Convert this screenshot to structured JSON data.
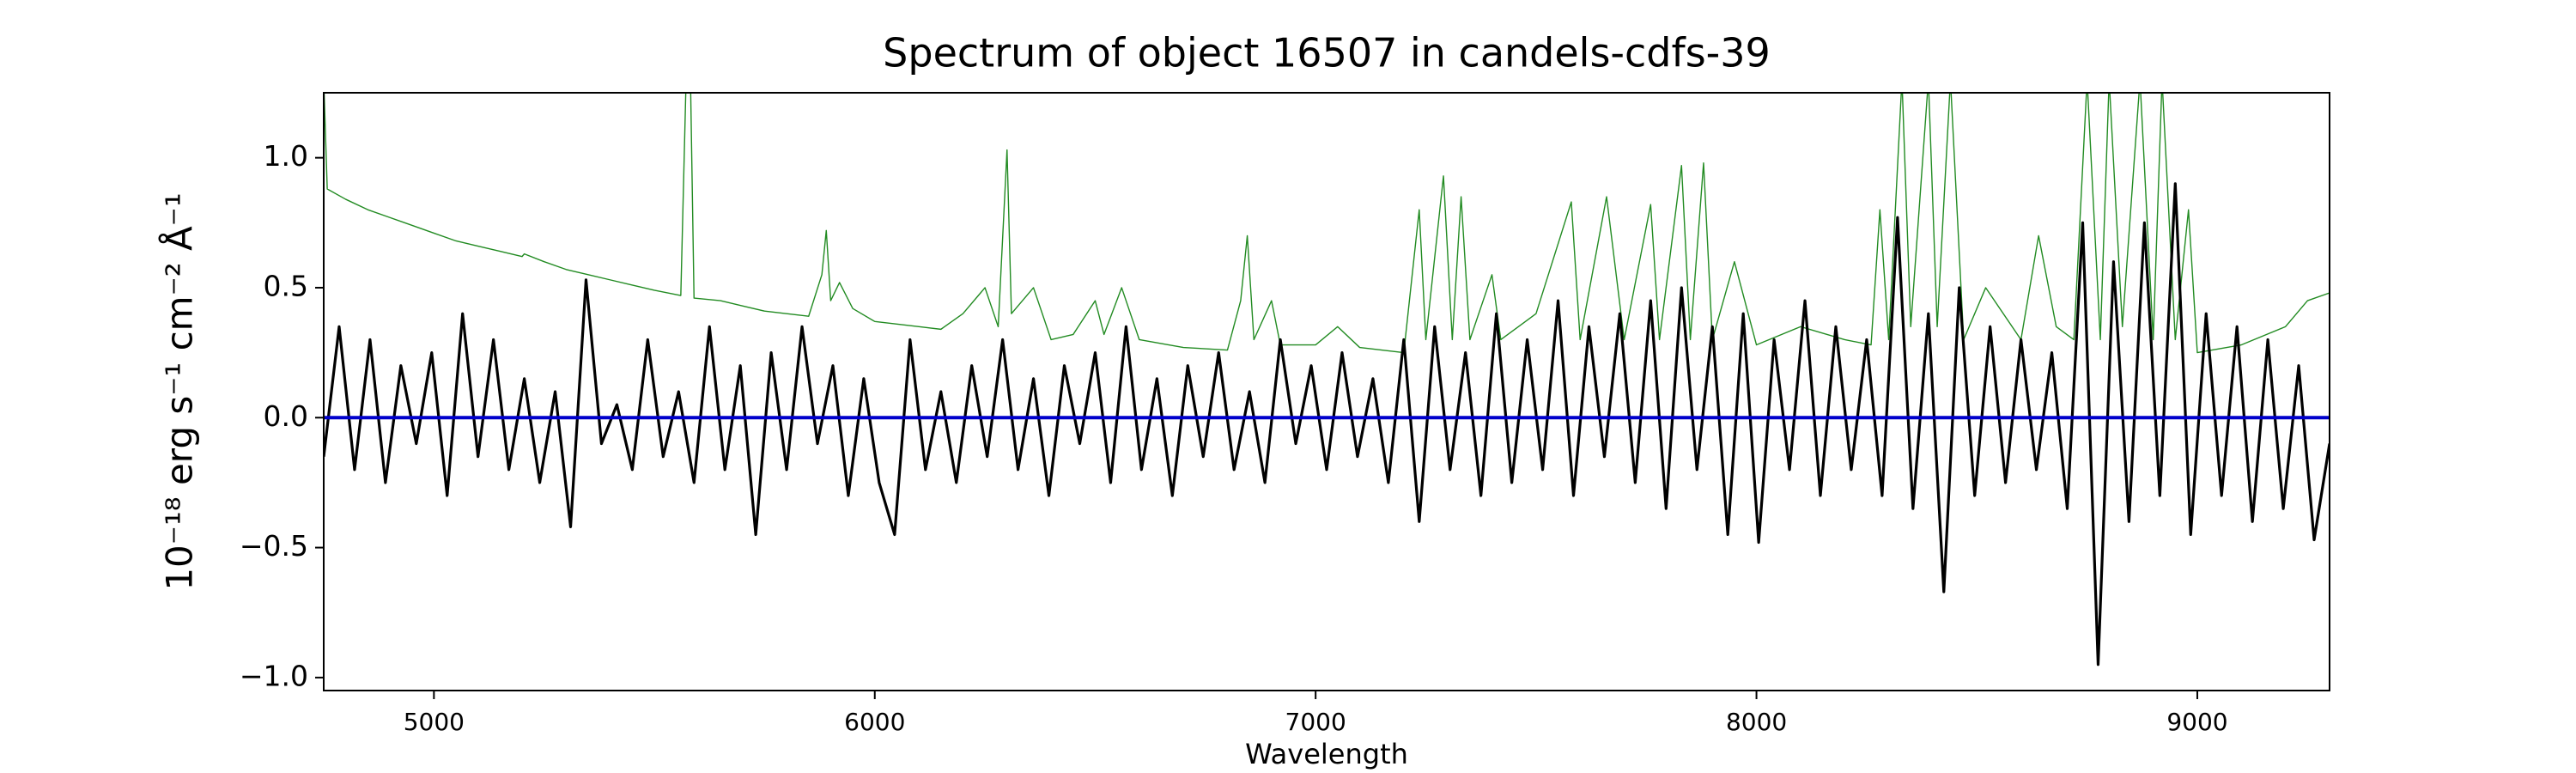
{
  "chart_data": {
    "type": "line",
    "title": "Spectrum of object 16507 in candels-cdfs-39",
    "xlabel": "Wavelength",
    "ylabel": "10⁻¹⁸ erg s⁻¹ cm⁻² Å⁻¹",
    "xlim": [
      4750,
      9300
    ],
    "ylim": [
      -1.05,
      1.25
    ],
    "xticks": [
      5000,
      6000,
      7000,
      8000,
      9000
    ],
    "yticks": [
      {
        "value": -1,
        "label": "−1.0"
      },
      {
        "value": -0.5,
        "label": "−0.5"
      },
      {
        "value": 0,
        "label": "0.0"
      },
      {
        "value": 0.5,
        "label": "0.5"
      },
      {
        "value": 1,
        "label": "1.0"
      }
    ],
    "grid": false,
    "series": [
      {
        "color": "#228b22",
        "x": [
          4750,
          4758,
          4800,
          4850,
          4900,
          4950,
          5000,
          5050,
          5100,
          5150,
          5200,
          5205,
          5250,
          5300,
          5350,
          5400,
          5450,
          5500,
          5560,
          5572,
          5582,
          5590,
          5650,
          5700,
          5750,
          5800,
          5850,
          5880,
          5890,
          5900,
          5920,
          5950,
          6000,
          6100,
          6150,
          6200,
          6250,
          6280,
          6300,
          6310,
          6360,
          6400,
          6450,
          6500,
          6520,
          6560,
          6600,
          6700,
          6800,
          6830,
          6845,
          6860,
          6900,
          6920,
          7000,
          7050,
          7100,
          7200,
          7235,
          7250,
          7290,
          7310,
          7330,
          7350,
          7400,
          7420,
          7500,
          7580,
          7600,
          7660,
          7700,
          7760,
          7780,
          7830,
          7850,
          7880,
          7900,
          7950,
          8000,
          8100,
          8200,
          8260,
          8280,
          8300,
          8330,
          8350,
          8390,
          8410,
          8440,
          8470,
          8520,
          8600,
          8640,
          8680,
          8720,
          8750,
          8780,
          8800,
          8830,
          8870,
          8900,
          8920,
          8950,
          8980,
          9000,
          9100,
          9200,
          9250,
          9300
        ],
        "values": [
          1.3,
          0.88,
          0.84,
          0.8,
          0.77,
          0.74,
          0.71,
          0.68,
          0.66,
          0.64,
          0.62,
          0.63,
          0.6,
          0.57,
          0.55,
          0.53,
          0.51,
          0.49,
          0.47,
          1.3,
          1.3,
          0.46,
          0.45,
          0.43,
          0.41,
          0.4,
          0.39,
          0.55,
          0.72,
          0.45,
          0.52,
          0.42,
          0.37,
          0.35,
          0.34,
          0.4,
          0.5,
          0.35,
          1.03,
          0.4,
          0.5,
          0.3,
          0.32,
          0.45,
          0.32,
          0.5,
          0.3,
          0.27,
          0.26,
          0.45,
          0.7,
          0.3,
          0.45,
          0.28,
          0.28,
          0.35,
          0.27,
          0.25,
          0.8,
          0.3,
          0.93,
          0.3,
          0.85,
          0.3,
          0.55,
          0.3,
          0.4,
          0.83,
          0.3,
          0.85,
          0.3,
          0.82,
          0.3,
          0.97,
          0.3,
          0.98,
          0.3,
          0.6,
          0.28,
          0.35,
          0.3,
          0.28,
          0.8,
          0.3,
          1.3,
          0.35,
          1.3,
          0.35,
          1.3,
          0.3,
          0.5,
          0.3,
          0.7,
          0.35,
          0.3,
          1.3,
          0.3,
          1.3,
          0.35,
          1.3,
          0.3,
          1.3,
          0.3,
          0.8,
          0.25,
          0.28,
          0.35,
          0.45,
          0.48
        ]
      },
      {
        "color": "#000000",
        "x": [
          4750,
          4785,
          4820,
          4855,
          4890,
          4925,
          4960,
          4995,
          5030,
          5065,
          5100,
          5135,
          5170,
          5205,
          5240,
          5275,
          5310,
          5345,
          5380,
          5415,
          5450,
          5485,
          5520,
          5555,
          5590,
          5625,
          5660,
          5695,
          5730,
          5765,
          5800,
          5835,
          5870,
          5905,
          5940,
          5975,
          6010,
          6045,
          6080,
          6115,
          6150,
          6185,
          6220,
          6255,
          6290,
          6325,
          6360,
          6395,
          6430,
          6465,
          6500,
          6535,
          6570,
          6605,
          6640,
          6675,
          6710,
          6745,
          6780,
          6815,
          6850,
          6885,
          6920,
          6955,
          6990,
          7025,
          7060,
          7095,
          7130,
          7165,
          7200,
          7235,
          7270,
          7305,
          7340,
          7375,
          7410,
          7445,
          7480,
          7515,
          7550,
          7585,
          7620,
          7655,
          7690,
          7725,
          7760,
          7795,
          7830,
          7865,
          7900,
          7935,
          7970,
          8005,
          8040,
          8075,
          8110,
          8145,
          8180,
          8215,
          8250,
          8285,
          8320,
          8355,
          8390,
          8425,
          8460,
          8495,
          8530,
          8565,
          8600,
          8635,
          8670,
          8705,
          8740,
          8775,
          8810,
          8845,
          8880,
          8915,
          8950,
          8985,
          9020,
          9055,
          9090,
          9125,
          9160,
          9195,
          9230,
          9265,
          9300
        ],
        "values": [
          -0.15,
          0.35,
          -0.2,
          0.3,
          -0.25,
          0.2,
          -0.1,
          0.25,
          -0.3,
          0.4,
          -0.15,
          0.3,
          -0.2,
          0.15,
          -0.25,
          0.1,
          -0.42,
          0.53,
          -0.1,
          0.05,
          -0.2,
          0.3,
          -0.15,
          0.1,
          -0.25,
          0.35,
          -0.2,
          0.2,
          -0.45,
          0.25,
          -0.2,
          0.35,
          -0.1,
          0.2,
          -0.3,
          0.15,
          -0.25,
          -0.45,
          0.3,
          -0.2,
          0.1,
          -0.25,
          0.2,
          -0.15,
          0.3,
          -0.2,
          0.15,
          -0.3,
          0.2,
          -0.1,
          0.25,
          -0.25,
          0.35,
          -0.2,
          0.15,
          -0.3,
          0.2,
          -0.15,
          0.25,
          -0.2,
          0.1,
          -0.25,
          0.3,
          -0.1,
          0.2,
          -0.2,
          0.25,
          -0.15,
          0.15,
          -0.25,
          0.3,
          -0.4,
          0.35,
          -0.2,
          0.25,
          -0.3,
          0.4,
          -0.25,
          0.3,
          -0.2,
          0.45,
          -0.3,
          0.35,
          -0.15,
          0.4,
          -0.25,
          0.45,
          -0.35,
          0.5,
          -0.2,
          0.35,
          -0.45,
          0.4,
          -0.48,
          0.3,
          -0.2,
          0.45,
          -0.3,
          0.35,
          -0.2,
          0.3,
          -0.3,
          0.77,
          -0.35,
          0.4,
          -0.67,
          0.5,
          -0.3,
          0.35,
          -0.25,
          0.3,
          -0.2,
          0.25,
          -0.35,
          0.75,
          -0.95,
          0.6,
          -0.4,
          0.75,
          -0.3,
          0.9,
          -0.45,
          0.4,
          -0.3,
          0.35,
          -0.4,
          0.3,
          -0.35,
          0.2,
          -0.47,
          -0.1
        ]
      },
      {
        "color": "#0000cc",
        "x": [
          4750,
          9300
        ],
        "values": [
          0,
          0
        ]
      }
    ]
  }
}
